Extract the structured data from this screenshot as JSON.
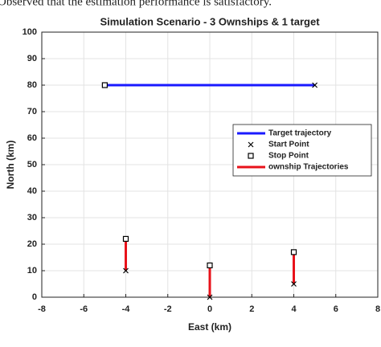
{
  "context_text": "Observed that the estimation performance is satisfactory.",
  "chart_data": {
    "type": "line",
    "title": "Simulation Scenario - 3 Ownships & 1 target",
    "xlabel": "East (km)",
    "ylabel": "North (km)",
    "xlim": [
      -8,
      8
    ],
    "xticks": [
      -8,
      -6,
      -4,
      -2,
      0,
      2,
      4,
      6,
      8
    ],
    "ylim": [
      0,
      100
    ],
    "yticks": [
      0,
      10,
      20,
      30,
      40,
      50,
      60,
      70,
      80,
      90,
      100
    ],
    "grid": true,
    "legend": "right",
    "series": [
      {
        "name": "Target trajectory",
        "style": "line",
        "color": "#1a1aff",
        "x": [
          5,
          -5
        ],
        "y": [
          80,
          80
        ]
      },
      {
        "name": "Start Point",
        "style": "x",
        "color": "#000000",
        "x": [
          5,
          -4,
          0,
          4
        ],
        "y": [
          80,
          10,
          0,
          5
        ]
      },
      {
        "name": "Stop Point",
        "style": "square",
        "color": "#000000",
        "x": [
          -5,
          -4,
          0,
          4
        ],
        "y": [
          80,
          22,
          12,
          17
        ]
      },
      {
        "name": "ownship Trajectories",
        "style": "line",
        "color": "#e8121a",
        "x": [
          -4,
          -4,
          null,
          0,
          0,
          null,
          4,
          4
        ],
        "y": [
          10,
          22,
          null,
          0,
          12,
          null,
          5,
          17
        ]
      }
    ]
  }
}
